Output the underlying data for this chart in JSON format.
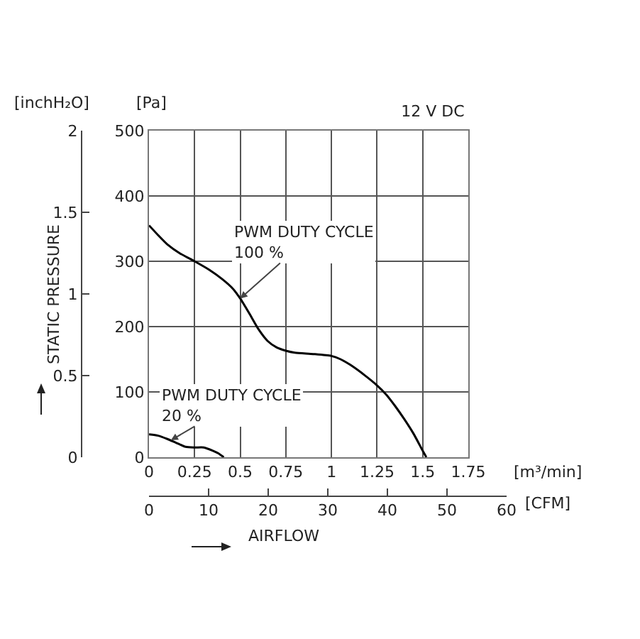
{
  "chart_data": {
    "type": "line",
    "title": "12 V DC",
    "xlabel": "[m³/min]",
    "ylabel": "[Pa]",
    "y2label": "[inchH₂O]",
    "x2label": "[CFM]",
    "annotations": [
      {
        "text": "PWM DUTY CYCLE\n100 %",
        "x": 0.5,
        "y": 243
      },
      {
        "text": "PWM DUTY CYCLE\n20 %",
        "x": 0.12,
        "y": 26
      },
      "STATIC PRESSURE",
      "AIRFLOW"
    ],
    "series": [
      {
        "color": "#000000",
        "x": [
          0,
          0.05,
          0.1,
          0.17,
          0.25,
          0.33,
          0.4,
          0.46,
          0.5,
          0.55,
          0.6,
          0.65,
          0.7,
          0.75,
          0.8,
          0.9,
          1.0,
          1.05,
          1.1,
          1.18,
          1.25,
          1.3,
          1.35,
          1.4,
          1.45,
          1.5,
          1.52
        ],
        "values": [
          355,
          340,
          326,
          312,
          300,
          287,
          273,
          258,
          243,
          220,
          196,
          178,
          168,
          163,
          160,
          158,
          155,
          150,
          142,
          126,
          110,
          96,
          78,
          58,
          36,
          10,
          0
        ]
      },
      {
        "color": "#000000",
        "x": [
          0,
          0.05,
          0.1,
          0.15,
          0.2,
          0.25,
          0.3,
          0.35,
          0.38,
          0.41
        ],
        "values": [
          35,
          33,
          28,
          22,
          16,
          15,
          15,
          10,
          6,
          0
        ]
      }
    ],
    "xlim": [
      0,
      1.75
    ],
    "xticks": [
      0,
      0.25,
      0.5,
      0.75,
      1,
      1.25,
      1.5,
      1.75
    ],
    "ylim": [
      0,
      500
    ],
    "yticks": [
      0,
      100,
      200,
      300,
      400,
      500
    ],
    "y2lim": [
      0,
      2
    ],
    "y2ticks": [
      0,
      0.5,
      1,
      1.5,
      2
    ],
    "x2lim": [
      0,
      60
    ],
    "x2ticks": [
      0,
      10,
      20,
      30,
      40,
      50,
      60
    ],
    "grid": true,
    "marker": "none",
    "line_style": "solid"
  }
}
